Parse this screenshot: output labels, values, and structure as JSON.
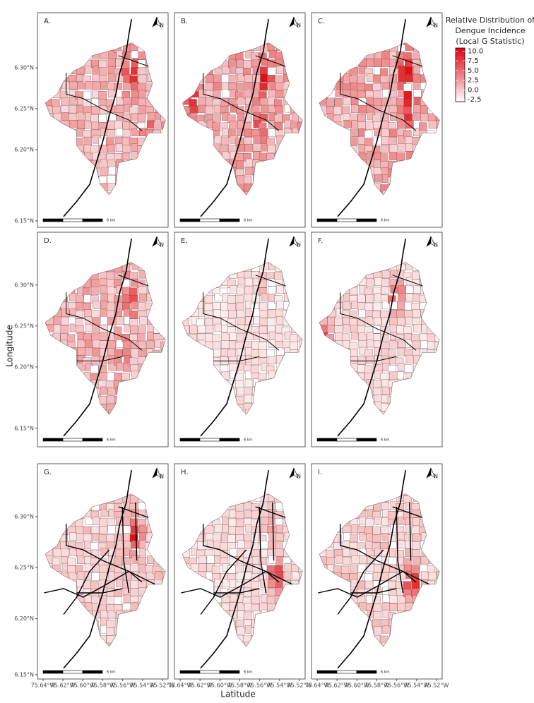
{
  "map": {
    "panels": [
      {
        "label": "A."
      },
      {
        "label": "B."
      },
      {
        "label": "C."
      },
      {
        "label": "D."
      },
      {
        "label": "E."
      },
      {
        "label": "F."
      },
      {
        "label": "G."
      },
      {
        "label": "H."
      },
      {
        "label": "I."
      }
    ],
    "north_label": "N",
    "scale_label": "6 km",
    "y_axis_label": "Longitude",
    "x_axis_label": "Latitude",
    "yticks": [
      "6.30°N",
      "6.25°N",
      "6.20°N",
      "6.15°N"
    ],
    "xticks": [
      "75.64°W",
      "75.62°W",
      "75.60°W",
      "75.58°W",
      "75.56°W",
      "75.54°W",
      "75.52°W"
    ],
    "legend": {
      "title": [
        "Relative Distribution of",
        "Dengue Incidence",
        "(Local G Statistic)"
      ],
      "lim": [
        -3,
        10.8
      ],
      "ticks": [
        {
          "value": 10,
          "label": "10.0"
        },
        7.5,
        {
          "value": 5,
          "label": "5.0"
        },
        2.5,
        {
          "value": 0,
          "label": "0.0"
        },
        -2.5
      ]
    }
  }
}
